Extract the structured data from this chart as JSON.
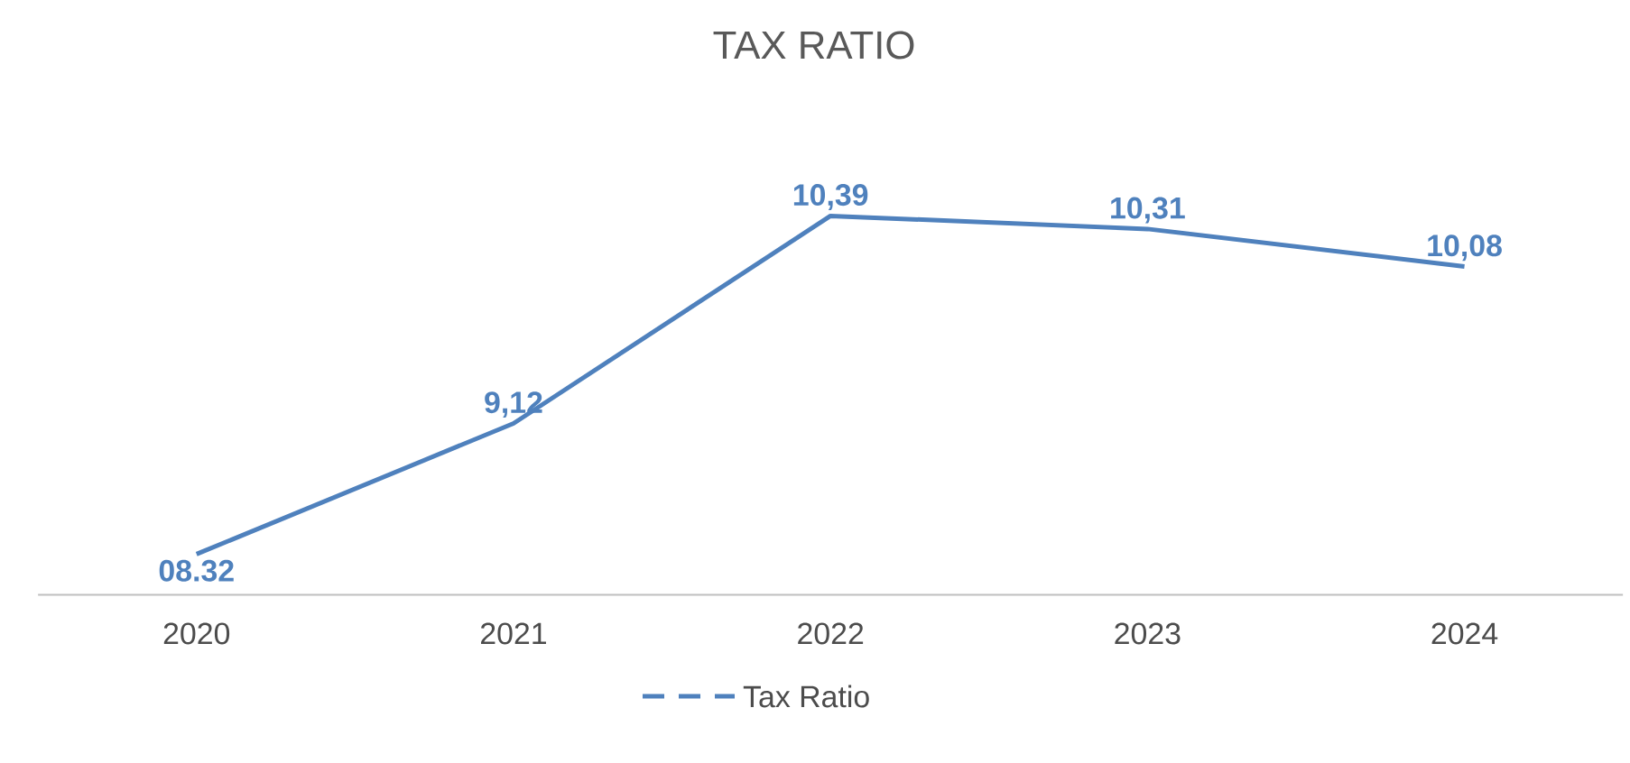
{
  "chart_data": {
    "type": "line",
    "title": "TAX RATIO",
    "categories": [
      "2020",
      "2021",
      "2022",
      "2023",
      "2024"
    ],
    "series": [
      {
        "name": "Tax Ratio",
        "color": "#4f81bd",
        "values": [
          8.32,
          9.12,
          10.39,
          10.31,
          10.08
        ],
        "value_labels": [
          "08.32",
          "9,12",
          "10,39",
          "10,31",
          "10,08"
        ]
      }
    ],
    "legend": "bottom",
    "marker": "none",
    "line_style": "solid"
  }
}
